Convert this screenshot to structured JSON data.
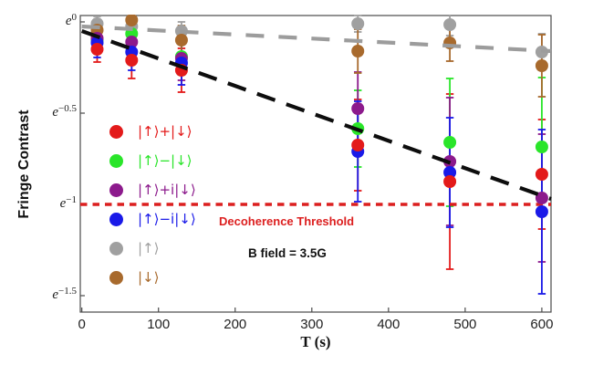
{
  "chart_data": {
    "type": "scatter",
    "title": "",
    "xlabel": "T (s)",
    "ylabel": "Fringe Contrast",
    "x_ticks": [
      0,
      100,
      200,
      300,
      400,
      500,
      600
    ],
    "y_ticks": [
      {
        "exp": "0",
        "ln": 0
      },
      {
        "exp": "−0.5",
        "ln": -0.5
      },
      {
        "exp": "−1",
        "ln": -1
      },
      {
        "exp": "−1.5",
        "ln": -1.5
      }
    ],
    "xlim": [
      -2,
      612
    ],
    "ylim_ln": [
      -1.59,
      0.035
    ],
    "x": [
      20,
      65,
      130,
      360,
      480,
      600
    ],
    "series": [
      {
        "name": "|↑⟩+|↓⟩",
        "color": "#e31a1a",
        "ln": [
          -0.15,
          -0.21,
          -0.265,
          -0.675,
          -0.875,
          -0.835
        ],
        "err": [
          0.07,
          0.1,
          0.12,
          0.25,
          0.48,
          0.3
        ]
      },
      {
        "name": "|↑⟩−|↓⟩",
        "color": "#2ae52a",
        "ln": [
          -0.1,
          -0.065,
          -0.19,
          -0.585,
          -0.66,
          -0.685
        ],
        "err": [
          0.06,
          0.08,
          0.1,
          0.21,
          0.35,
          0.38
        ]
      },
      {
        "name": "|↑⟩+i|↓⟩",
        "color": "#8c1a8c",
        "ln": [
          -0.09,
          -0.11,
          -0.2,
          -0.475,
          -0.765,
          -0.965
        ],
        "err": [
          0.07,
          0.1,
          0.12,
          0.2,
          0.35,
          0.35
        ]
      },
      {
        "name": "|↑⟩−i|↓⟩",
        "color": "#1a1ae8",
        "ln": [
          -0.115,
          -0.165,
          -0.225,
          -0.71,
          -0.825,
          -1.04
        ],
        "err": [
          0.08,
          0.1,
          0.12,
          0.275,
          0.3,
          0.45
        ]
      },
      {
        "name": "|↑⟩",
        "color": "#a0a0a0",
        "ln": [
          -0.01,
          -0.025,
          -0.05,
          -0.01,
          -0.015,
          -0.165
        ],
        "err": [
          0.04,
          0.04,
          0.05,
          0.045,
          0.06,
          0.1
        ]
      },
      {
        "name": "|↓⟩",
        "color": "#a86a2d",
        "ln": [
          -0.045,
          0.01,
          -0.1,
          -0.16,
          -0.115,
          -0.24
        ],
        "err": [
          0.05,
          0.05,
          0.08,
          0.12,
          0.1,
          0.17
        ]
      }
    ],
    "point_draw_order": [
      4,
      5,
      1,
      2,
      3,
      0
    ],
    "fits": [
      {
        "name": "population-fit-line",
        "color": "#9c9c9c",
        "dash": [
          20,
          16
        ],
        "width": 4.2,
        "from": {
          "x": 0,
          "ln": -0.025
        },
        "to": {
          "x": 612,
          "ln": -0.16
        }
      },
      {
        "name": "superposition-fit-line",
        "color": "#0d0d0d",
        "dash": [
          21,
          13
        ],
        "width": 4.2,
        "from": {
          "x": 0,
          "ln": -0.05
        },
        "to": {
          "x": 612,
          "ln": -0.97
        }
      }
    ],
    "threshold": {
      "ln": -1,
      "color": "#dc1f1f",
      "label": "Decoherence Threshold"
    },
    "annotations": {
      "bfield": "B field = 3.5G"
    },
    "legend_position": "upper-left-inside",
    "grid": false
  }
}
